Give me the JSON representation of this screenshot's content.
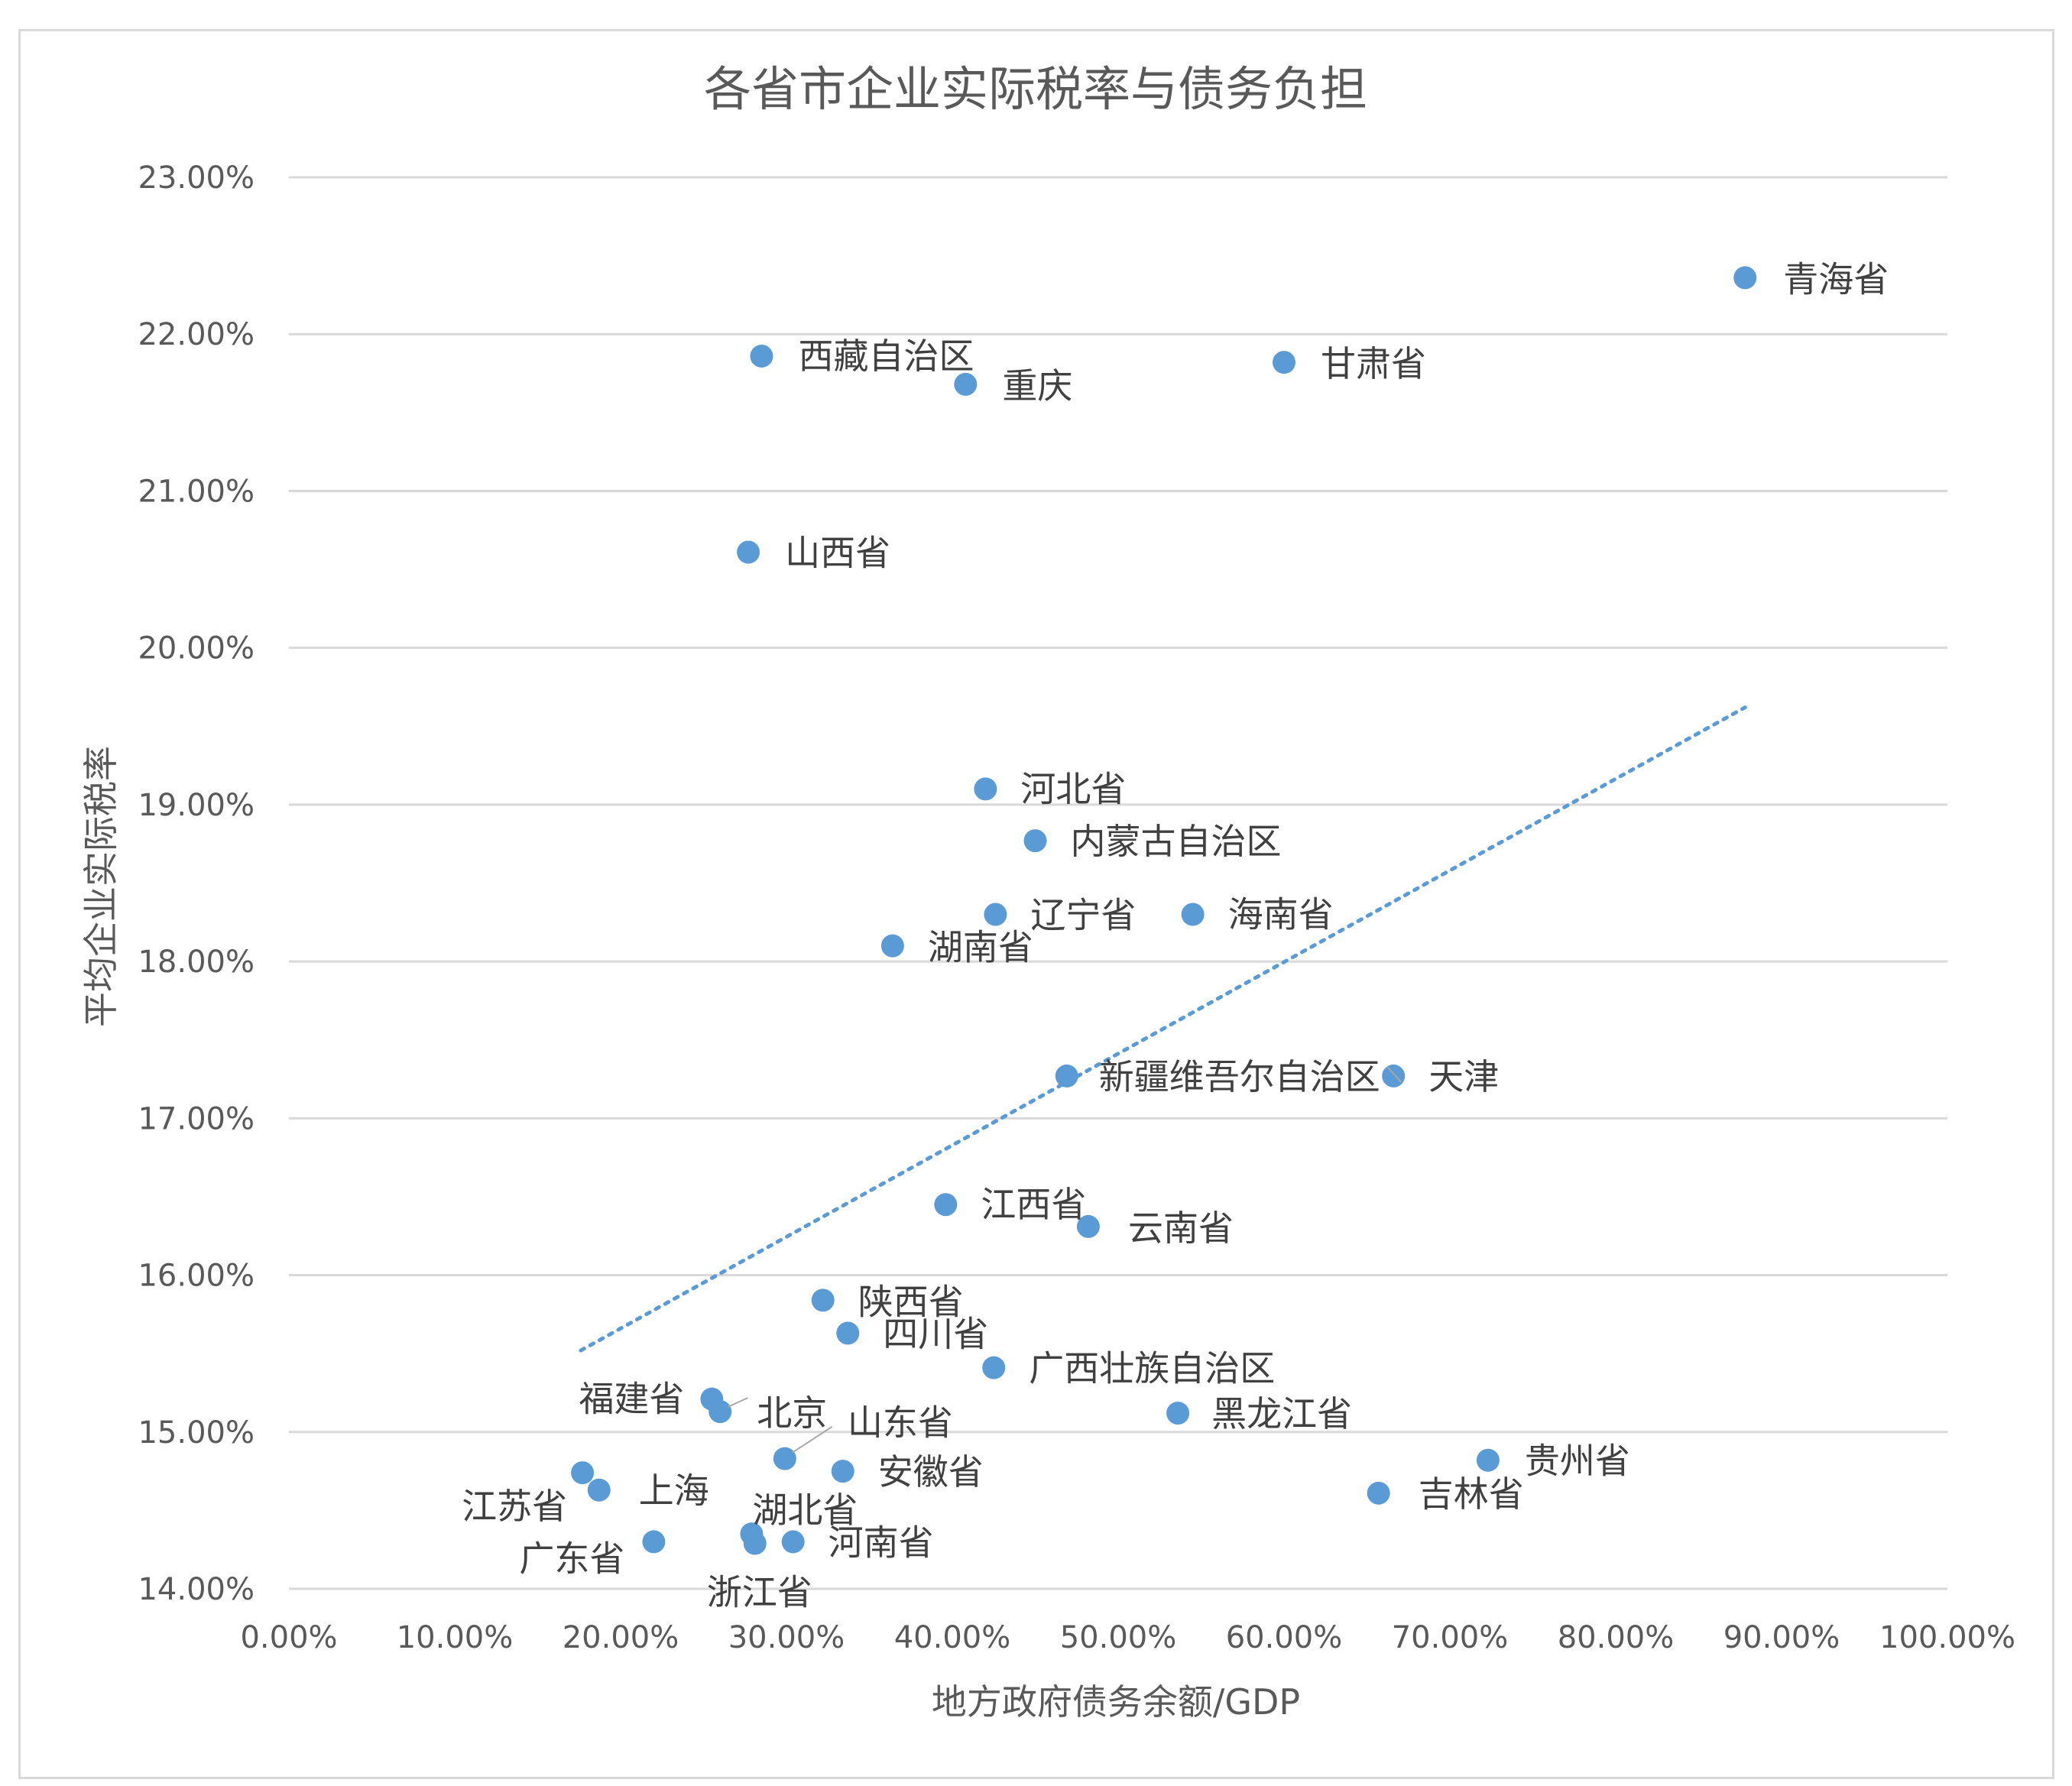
{
  "colors": {
    "marker": "#5b9bd5",
    "trendline": "#5b9bd5",
    "gridline": "#d9d9d9",
    "text": "#595959",
    "label_text": "#404040"
  },
  "chart_data": {
    "type": "scatter",
    "title": "各省市企业实际税率与债务负担",
    "xlabel": "地方政府债务余额/GDP",
    "ylabel": "平均企业实际税率",
    "xlim": [
      0,
      100
    ],
    "ylim": [
      14,
      23
    ],
    "x_ticks": [
      0,
      10,
      20,
      30,
      40,
      50,
      60,
      70,
      80,
      90,
      100
    ],
    "x_tick_labels": [
      "0.00%",
      "10.00%",
      "20.00%",
      "30.00%",
      "40.00%",
      "50.00%",
      "60.00%",
      "70.00%",
      "80.00%",
      "90.00%",
      "100.00%"
    ],
    "y_ticks": [
      14,
      15,
      16,
      17,
      18,
      19,
      20,
      21,
      22,
      23
    ],
    "y_tick_labels": [
      "14.00%",
      "15.00%",
      "16.00%",
      "17.00%",
      "18.00%",
      "19.00%",
      "20.00%",
      "21.00%",
      "22.00%",
      "23.00%"
    ],
    "grid": "horizontal",
    "legend": "none",
    "trendline": {
      "type": "linear",
      "style": "dotted",
      "x_start": 17.6,
      "y_start": 15.52,
      "x_end": 87.8,
      "y_end": 19.62
    },
    "points": [
      {
        "label": "青海省",
        "x": 87.8,
        "y": 22.36
      },
      {
        "label": "西藏自治区",
        "x": 28.5,
        "y": 21.86
      },
      {
        "label": "重庆",
        "x": 40.8,
        "y": 21.68
      },
      {
        "label": "甘肃省",
        "x": 60.0,
        "y": 21.82
      },
      {
        "label": "山西省",
        "x": 27.7,
        "y": 20.61
      },
      {
        "label": "河北省",
        "x": 42.0,
        "y": 19.1
      },
      {
        "label": "内蒙古自治区",
        "x": 45.0,
        "y": 18.77
      },
      {
        "label": "辽宁省",
        "x": 42.6,
        "y": 18.3
      },
      {
        "label": "海南省",
        "x": 54.5,
        "y": 18.3
      },
      {
        "label": "湖南省",
        "x": 36.4,
        "y": 18.1
      },
      {
        "label": "新疆维吾尔自治区",
        "x": 46.9,
        "y": 17.27
      },
      {
        "label": "天津",
        "x": 66.6,
        "y": 17.27
      },
      {
        "label": "江西省",
        "x": 39.6,
        "y": 16.45
      },
      {
        "label": "云南省",
        "x": 48.2,
        "y": 16.31
      },
      {
        "label": "陕西省",
        "x": 32.2,
        "y": 15.84
      },
      {
        "label": "四川省",
        "x": 33.7,
        "y": 15.63
      },
      {
        "label": "广西壮族自治区",
        "x": 42.5,
        "y": 15.41
      },
      {
        "label": "福建省",
        "x": 25.5,
        "y": 15.21
      },
      {
        "label": "北京",
        "x": 26.0,
        "y": 15.13
      },
      {
        "label": "黑龙江省",
        "x": 53.6,
        "y": 15.12
      },
      {
        "label": "山东省",
        "x": 29.9,
        "y": 14.83
      },
      {
        "label": "安徽省",
        "x": 33.4,
        "y": 14.75
      },
      {
        "label": "贵州省",
        "x": 72.3,
        "y": 14.82
      },
      {
        "label": "江苏省",
        "x": 17.7,
        "y": 14.74
      },
      {
        "label": "上海",
        "x": 18.7,
        "y": 14.63
      },
      {
        "label": "吉林省",
        "x": 65.7,
        "y": 14.61
      },
      {
        "label": "湖北省",
        "x": 27.9,
        "y": 14.35
      },
      {
        "label": "浙江省",
        "x": 28.1,
        "y": 14.29
      },
      {
        "label": "河南省",
        "x": 30.4,
        "y": 14.3
      },
      {
        "label": "广东省",
        "x": 22.0,
        "y": 14.3
      }
    ]
  }
}
